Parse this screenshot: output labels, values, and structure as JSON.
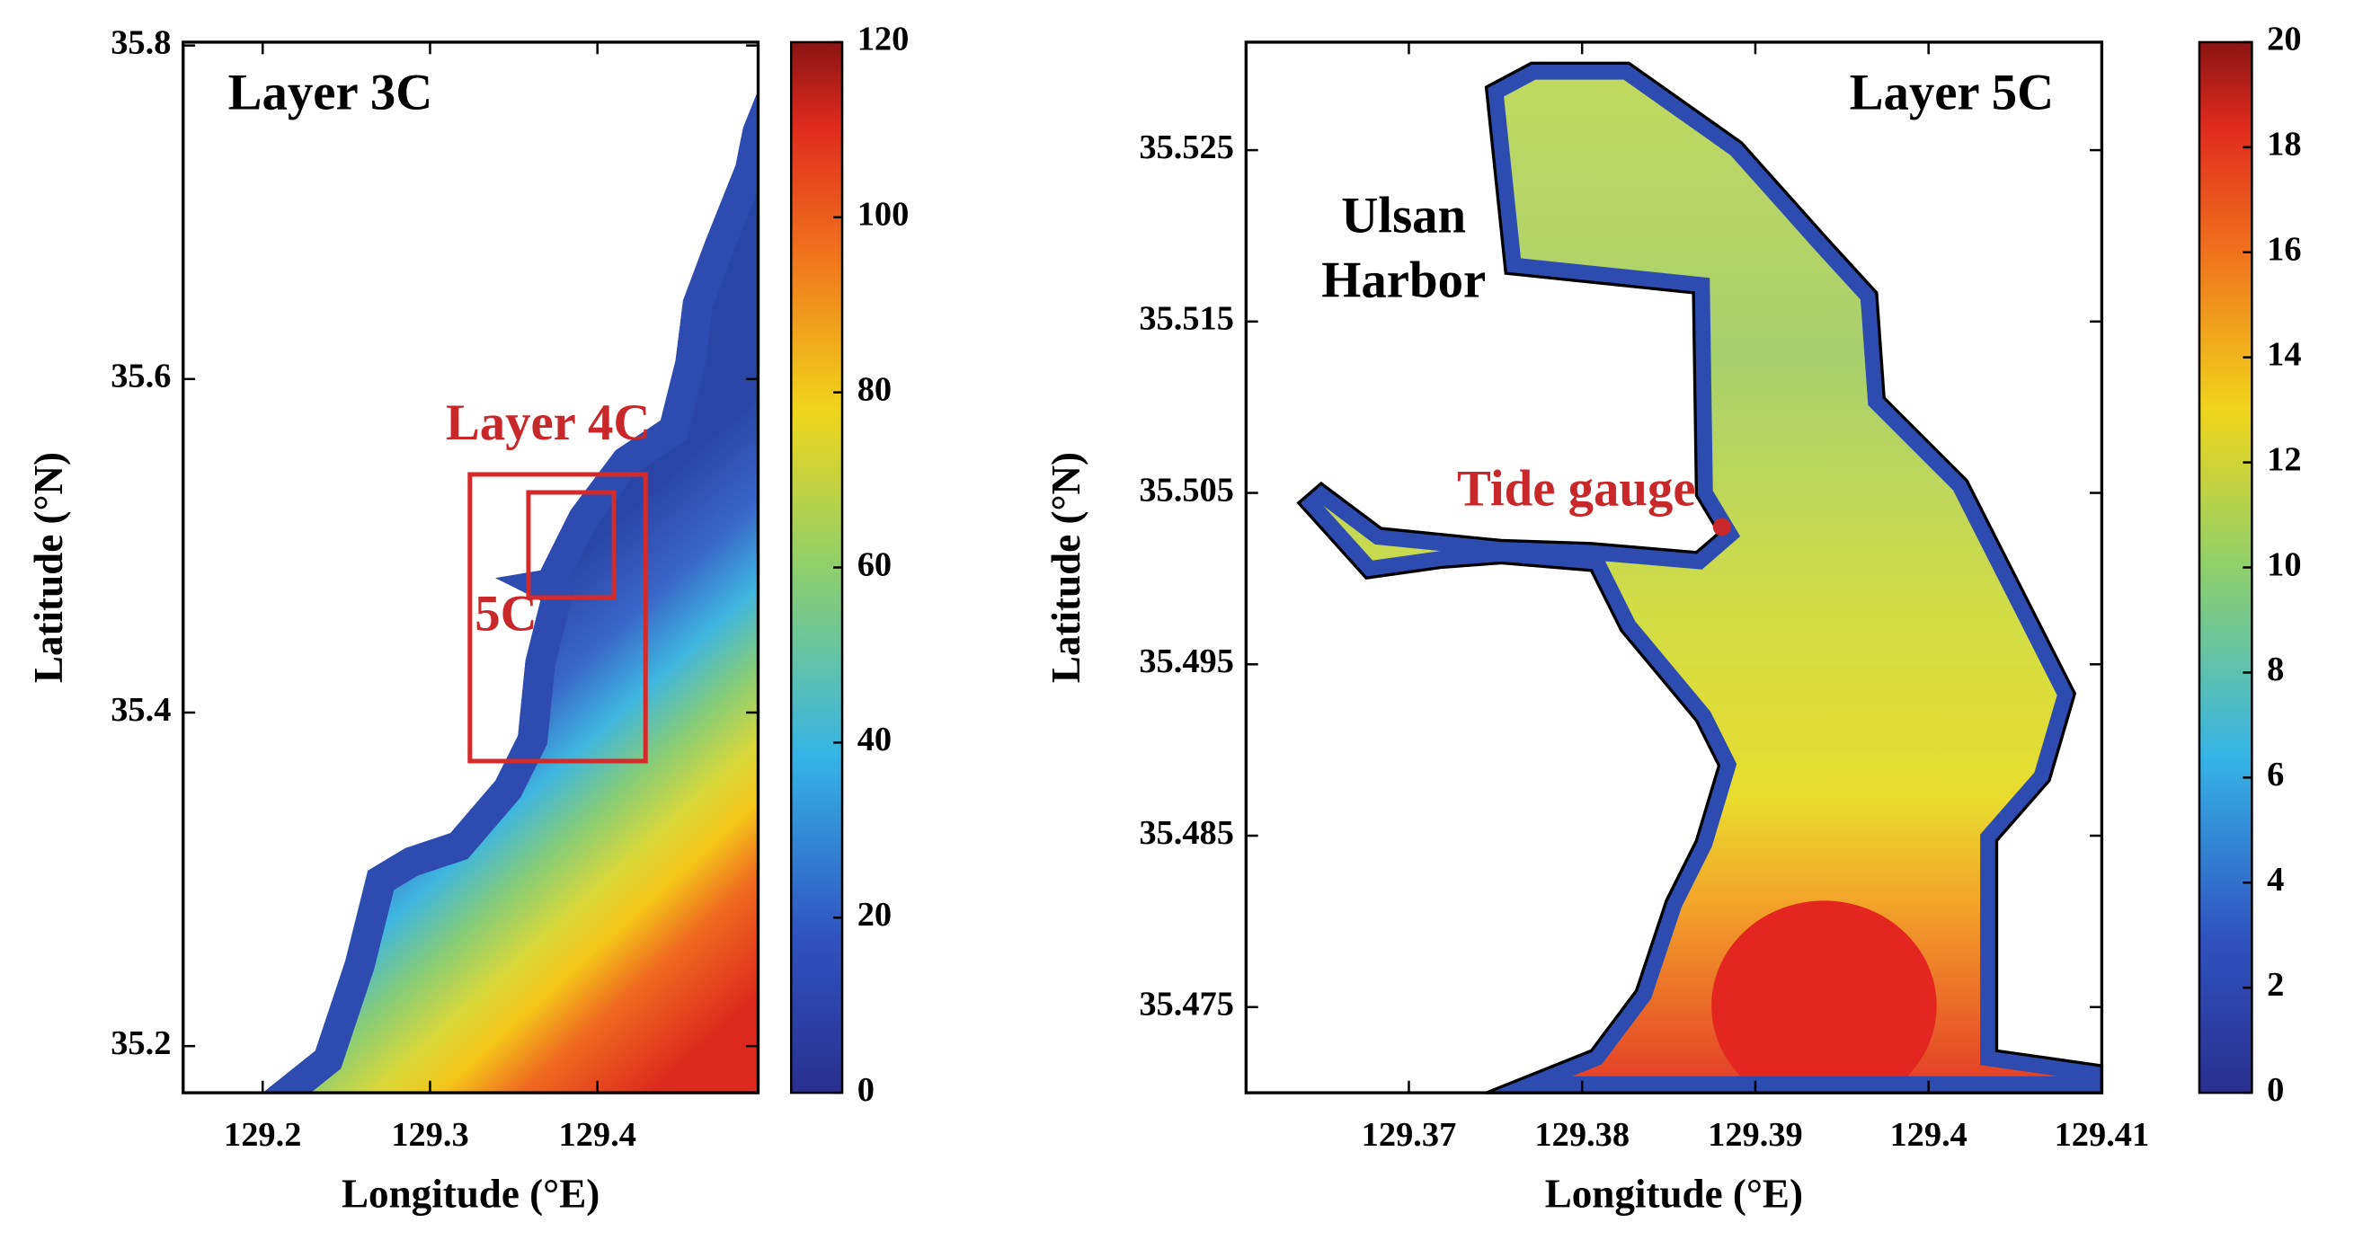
{
  "panels": [
    {
      "title": "Layer 3C",
      "xlabel": "Longitude (°E)",
      "ylabel": "Latitude (°N)",
      "xlim": [
        129.1525,
        129.496
      ],
      "xticks": [
        129.2,
        129.3,
        129.4
      ],
      "ylim": [
        35.172,
        35.802
      ],
      "yticks": [
        35.2,
        35.4,
        35.6,
        35.8
      ],
      "colorbar": {
        "lim": [
          0,
          120
        ],
        "ticks": [
          0,
          20,
          40,
          60,
          80,
          100,
          120
        ]
      },
      "annotations": [
        "Layer 4C",
        "5C"
      ]
    },
    {
      "title": "Layer 5C",
      "xlabel": "Longitude (°E)",
      "ylabel": "Latitude (°N)",
      "xlim": [
        129.3606,
        129.41
      ],
      "xticks": [
        129.37,
        129.38,
        129.39,
        129.4,
        129.41
      ],
      "ylim": [
        35.47,
        35.5313
      ],
      "yticks": [
        35.475,
        35.485,
        35.495,
        35.505,
        35.515,
        35.525
      ],
      "colorbar": {
        "lim": [
          0,
          20
        ],
        "ticks": [
          0,
          2,
          4,
          6,
          8,
          10,
          12,
          14,
          16,
          18,
          20
        ]
      },
      "annotations": [
        "Ulsan",
        "Harbor",
        "Tide gauge"
      ]
    }
  ]
}
